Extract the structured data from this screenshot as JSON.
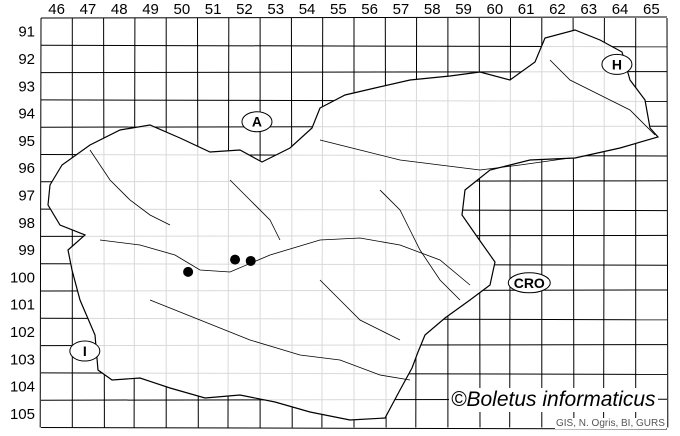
{
  "map": {
    "columns": [
      "46",
      "47",
      "48",
      "49",
      "50",
      "51",
      "52",
      "53",
      "54",
      "55",
      "56",
      "57",
      "58",
      "59",
      "60",
      "61",
      "62",
      "63",
      "64",
      "65"
    ],
    "rows": [
      "91",
      "92",
      "93",
      "94",
      "95",
      "96",
      "97",
      "98",
      "99",
      "100",
      "101",
      "102",
      "103",
      "104",
      "105"
    ],
    "country_labels": [
      {
        "text": "A",
        "col": 52.9,
        "row": 94.8
      },
      {
        "text": "H",
        "col": 64.4,
        "row": 92.7
      },
      {
        "text": "CRO",
        "col": 61.6,
        "row": 100.7
      },
      {
        "text": "I",
        "col": 47.4,
        "row": 103.2
      }
    ],
    "records": [
      {
        "col": 50.7,
        "row": 100.3
      },
      {
        "col": 52.2,
        "row": 99.85
      },
      {
        "col": 52.7,
        "row": 99.9
      }
    ],
    "colors": {
      "lines": "#000000",
      "dots": "#000000",
      "background": "#ffffff"
    }
  },
  "credit": "©Boletus informaticus",
  "source": "GIS, N. Ogris, BI, GURS"
}
